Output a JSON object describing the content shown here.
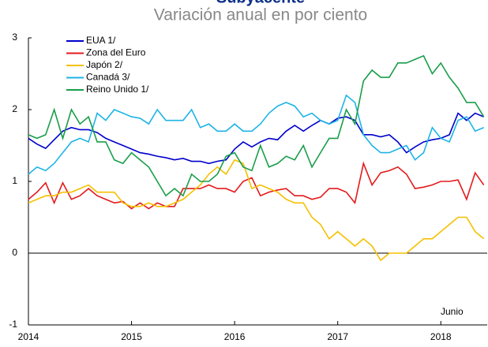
{
  "chart_data": {
    "type": "line",
    "title": "Subyacente",
    "subtitle": "Variación anual en por ciento",
    "annotation": "Junio",
    "x": [
      2014,
      2014.083,
      2014.167,
      2014.25,
      2014.333,
      2014.417,
      2014.5,
      2014.583,
      2014.667,
      2014.75,
      2014.833,
      2014.917,
      2015,
      2015.083,
      2015.167,
      2015.25,
      2015.333,
      2015.417,
      2015.5,
      2015.583,
      2015.667,
      2015.75,
      2015.833,
      2015.917,
      2016,
      2016.083,
      2016.167,
      2016.25,
      2016.333,
      2016.417,
      2016.5,
      2016.583,
      2016.667,
      2016.75,
      2016.833,
      2016.917,
      2017,
      2017.083,
      2017.167,
      2017.25,
      2017.333,
      2017.417,
      2017.5,
      2017.583,
      2017.667,
      2017.75,
      2017.833,
      2017.917,
      2018,
      2018.083,
      2018.167,
      2018.25,
      2018.333,
      2018.417
    ],
    "series": [
      {
        "name": "EUA 1/",
        "color": "#0000cc",
        "values": [
          1.6,
          1.52,
          1.46,
          1.58,
          1.7,
          1.75,
          1.72,
          1.72,
          1.68,
          1.6,
          1.55,
          1.5,
          1.45,
          1.4,
          1.38,
          1.35,
          1.33,
          1.3,
          1.32,
          1.28,
          1.28,
          1.25,
          1.28,
          1.3,
          1.45,
          1.55,
          1.48,
          1.55,
          1.6,
          1.58,
          1.7,
          1.78,
          1.7,
          1.78,
          1.85,
          1.8,
          1.88,
          1.9,
          1.85,
          1.65,
          1.65,
          1.62,
          1.65,
          1.55,
          1.4,
          1.48,
          1.55,
          1.58,
          1.6,
          1.65,
          1.95,
          1.85,
          1.95,
          1.9
        ]
      },
      {
        "name": "Zona del Euro",
        "color": "#e31a1c",
        "values": [
          0.75,
          0.85,
          0.98,
          0.7,
          0.98,
          0.75,
          0.8,
          0.9,
          0.8,
          0.75,
          0.7,
          0.72,
          0.62,
          0.7,
          0.62,
          0.7,
          0.65,
          0.65,
          0.9,
          0.9,
          0.9,
          0.95,
          0.9,
          0.9,
          0.85,
          1.0,
          1.05,
          0.8,
          0.85,
          0.88,
          0.9,
          0.8,
          0.8,
          0.75,
          0.78,
          0.9,
          0.9,
          0.85,
          0.7,
          1.25,
          0.95,
          1.12,
          1.15,
          1.2,
          1.1,
          0.9,
          0.92,
          0.95,
          1.0,
          1.0,
          1.02,
          0.75,
          1.12,
          0.95
        ]
      },
      {
        "name": "Japón 2/",
        "color": "#f5c000",
        "values": [
          0.7,
          0.75,
          0.8,
          0.8,
          0.85,
          0.85,
          0.9,
          0.95,
          0.85,
          0.85,
          0.85,
          0.7,
          0.65,
          0.65,
          0.7,
          0.65,
          0.65,
          0.7,
          0.75,
          0.85,
          0.95,
          1.1,
          1.2,
          1.1,
          1.3,
          1.25,
          0.9,
          0.95,
          0.9,
          0.85,
          0.75,
          0.7,
          0.7,
          0.5,
          0.4,
          0.2,
          0.3,
          0.2,
          0.1,
          0.2,
          0.1,
          -0.1,
          0.0,
          0.0,
          0.0,
          0.1,
          0.2,
          0.2,
          0.3,
          0.4,
          0.5,
          0.5,
          0.3,
          0.2
        ]
      },
      {
        "name": "Canadá 3/",
        "color": "#1eb4e6",
        "values": [
          1.1,
          1.2,
          1.15,
          1.25,
          1.4,
          1.55,
          1.6,
          1.55,
          1.95,
          1.85,
          2.0,
          1.95,
          1.9,
          1.88,
          1.8,
          2.0,
          1.85,
          1.85,
          1.85,
          2.0,
          1.75,
          1.8,
          1.7,
          1.7,
          1.8,
          1.7,
          1.7,
          1.8,
          1.95,
          2.05,
          2.1,
          2.05,
          1.9,
          1.95,
          1.85,
          1.8,
          1.85,
          2.2,
          2.1,
          1.65,
          1.5,
          1.4,
          1.4,
          1.45,
          1.5,
          1.3,
          1.4,
          1.75,
          1.6,
          1.55,
          1.85,
          1.9,
          1.7,
          1.75
        ]
      },
      {
        "name": "Reino Unido 1/",
        "color": "#1a9e4a",
        "values": [
          1.65,
          1.6,
          1.65,
          2.0,
          1.6,
          2.0,
          1.8,
          1.9,
          1.55,
          1.55,
          1.3,
          1.25,
          1.4,
          1.3,
          1.2,
          1.0,
          0.8,
          0.9,
          0.8,
          1.1,
          1.0,
          1.0,
          1.1,
          1.35,
          1.4,
          1.2,
          1.15,
          1.5,
          1.2,
          1.25,
          1.35,
          1.3,
          1.5,
          1.2,
          1.4,
          1.6,
          1.6,
          2.0,
          1.8,
          2.4,
          2.55,
          2.45,
          2.45,
          2.65,
          2.65,
          2.7,
          2.75,
          2.5,
          2.65,
          2.45,
          2.3,
          2.1,
          2.1,
          1.9
        ]
      }
    ],
    "xlim": [
      2014,
      2018.45
    ],
    "xticks": [
      2014,
      2015,
      2016,
      2017,
      2018
    ],
    "ylim": [
      -1,
      3
    ],
    "yticks": [
      -1,
      0,
      1,
      2,
      3
    ]
  }
}
